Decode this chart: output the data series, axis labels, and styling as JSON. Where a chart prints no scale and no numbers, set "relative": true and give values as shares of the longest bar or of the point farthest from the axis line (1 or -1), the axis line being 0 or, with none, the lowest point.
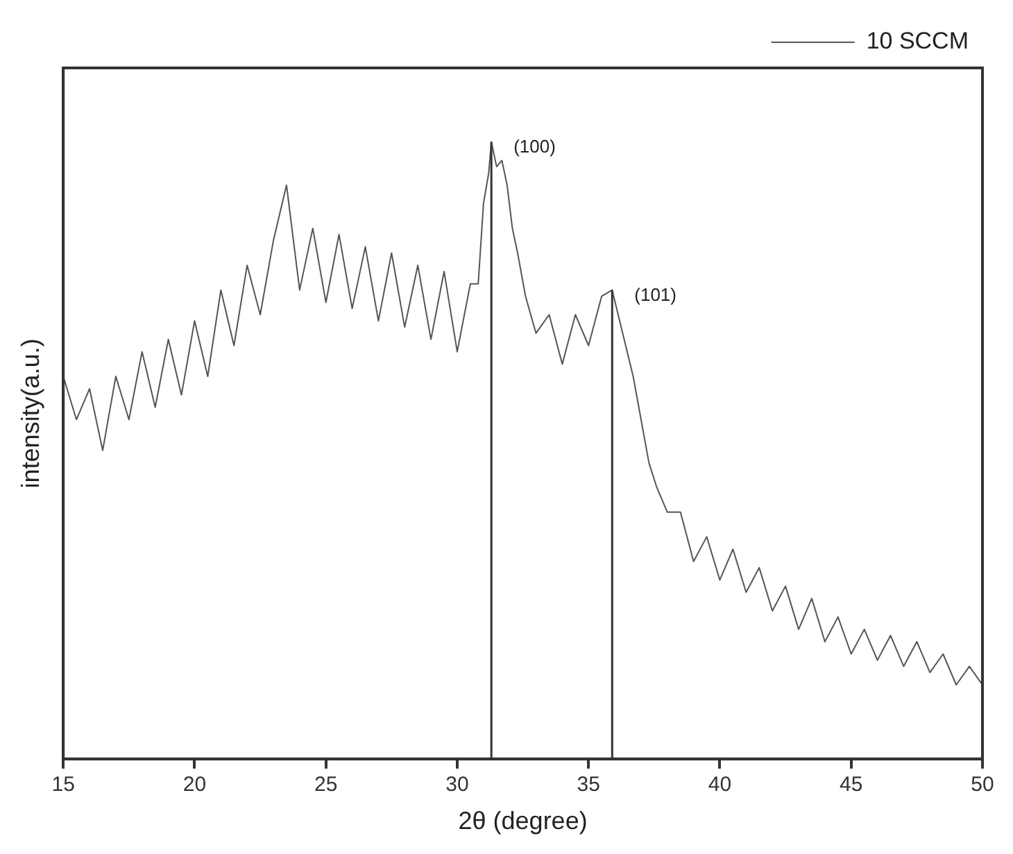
{
  "chart_data": {
    "type": "line",
    "relative": true,
    "xlabel": "2θ (degree)",
    "ylabel": "intensity(a.u.)",
    "xlim": [
      15,
      50
    ],
    "xticks": [
      15,
      20,
      25,
      30,
      35,
      40,
      45,
      50
    ],
    "legend": "top right",
    "grid": false,
    "marker": "none",
    "x": [
      15,
      15.5,
      16,
      16.5,
      17,
      17.5,
      18,
      18.5,
      19,
      19.5,
      20,
      20.5,
      21,
      21.5,
      22,
      22.5,
      23,
      23.5,
      24,
      24.5,
      25,
      25.5,
      26,
      26.5,
      27,
      27.5,
      28,
      28.5,
      29,
      29.5,
      30,
      30.5,
      30.8,
      31,
      31.2,
      31.3,
      31.5,
      31.7,
      31.9,
      32.1,
      32.3,
      32.6,
      33,
      33.5,
      34,
      34.5,
      35,
      35.5,
      35.9,
      36.3,
      36.7,
      37,
      37.3,
      37.6,
      38,
      38.5,
      39,
      39.5,
      40,
      40.5,
      41,
      41.5,
      42,
      42.5,
      43,
      43.5,
      44,
      44.5,
      45,
      45.5,
      46,
      46.5,
      47,
      47.5,
      48,
      48.5,
      49,
      49.5,
      50
    ],
    "series": [
      {
        "name": "10 SCCM",
        "color": "#555555",
        "values": [
          0.62,
          0.55,
          0.6,
          0.5,
          0.62,
          0.55,
          0.66,
          0.57,
          0.68,
          0.59,
          0.71,
          0.62,
          0.76,
          0.67,
          0.8,
          0.72,
          0.84,
          0.93,
          0.76,
          0.86,
          0.74,
          0.85,
          0.73,
          0.83,
          0.71,
          0.82,
          0.7,
          0.8,
          0.68,
          0.79,
          0.66,
          0.77,
          0.77,
          0.9,
          0.95,
          1.0,
          0.96,
          0.97,
          0.93,
          0.86,
          0.82,
          0.75,
          0.69,
          0.72,
          0.64,
          0.72,
          0.67,
          0.75,
          0.76,
          0.69,
          0.62,
          0.55,
          0.48,
          0.44,
          0.4,
          0.4,
          0.32,
          0.36,
          0.29,
          0.34,
          0.27,
          0.31,
          0.24,
          0.28,
          0.21,
          0.26,
          0.19,
          0.23,
          0.17,
          0.21,
          0.16,
          0.2,
          0.15,
          0.19,
          0.14,
          0.17,
          0.12,
          0.15,
          0.12
        ]
      }
    ],
    "ref_lines": [
      {
        "axis": "x",
        "value": 31.3,
        "color": "#333333"
      },
      {
        "axis": "x",
        "value": 35.9,
        "color": "#333333"
      }
    ],
    "annotations": [
      {
        "text": "(100)",
        "x": 31.3,
        "y": 1.0
      },
      {
        "text": "(101)",
        "x": 35.9,
        "y": 0.76
      }
    ]
  }
}
